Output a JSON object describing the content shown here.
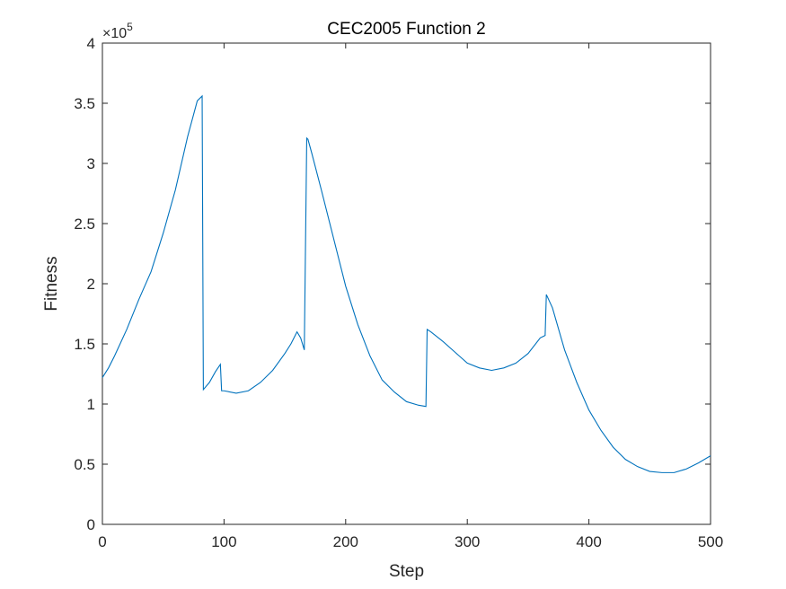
{
  "chart_data": {
    "type": "line",
    "title": "CEC2005 Function 2",
    "xlabel": "Step",
    "ylabel": "Fitness",
    "y_exponent_label": "×10",
    "y_exponent_power": "5",
    "xlim": [
      0,
      500
    ],
    "ylim": [
      0,
      4
    ],
    "y_multiplier": 100000,
    "grid": false,
    "legend": "none",
    "x_ticks": [
      0,
      100,
      200,
      300,
      400,
      500
    ],
    "x_tick_labels": [
      "0",
      "100",
      "200",
      "300",
      "400",
      "500"
    ],
    "y_ticks": [
      0,
      0.5,
      1,
      1.5,
      2,
      2.5,
      3,
      3.5,
      4
    ],
    "y_tick_labels": [
      "0",
      "0.5",
      "1",
      "1.5",
      "2",
      "2.5",
      "3",
      "3.5",
      "4"
    ],
    "line_color": "#0072BD",
    "series": [
      {
        "x": [
          0,
          5,
          10,
          20,
          30,
          40,
          50,
          60,
          70,
          78,
          82,
          83,
          88,
          93,
          97,
          98,
          100,
          110,
          120,
          130,
          140,
          150,
          155,
          160,
          163,
          166,
          168,
          169,
          172,
          180,
          190,
          200,
          210,
          220,
          230,
          240,
          250,
          260,
          266,
          267,
          270,
          280,
          290,
          300,
          310,
          320,
          330,
          340,
          350,
          360,
          364,
          365,
          370,
          380,
          390,
          400,
          410,
          420,
          430,
          440,
          450,
          460,
          470,
          480,
          490,
          500
        ],
        "y": [
          1.22,
          1.3,
          1.4,
          1.62,
          1.87,
          2.1,
          2.42,
          2.78,
          3.22,
          3.52,
          3.56,
          1.12,
          1.18,
          1.27,
          1.33,
          1.11,
          1.11,
          1.09,
          1.11,
          1.18,
          1.28,
          1.42,
          1.5,
          1.6,
          1.55,
          1.45,
          3.21,
          3.2,
          3.09,
          2.78,
          2.38,
          1.98,
          1.66,
          1.4,
          1.2,
          1.1,
          1.02,
          0.99,
          0.98,
          1.62,
          1.6,
          1.52,
          1.43,
          1.34,
          1.3,
          1.28,
          1.3,
          1.34,
          1.42,
          1.55,
          1.57,
          1.91,
          1.8,
          1.45,
          1.18,
          0.95,
          0.78,
          0.64,
          0.54,
          0.48,
          0.44,
          0.43,
          0.43,
          0.46,
          0.51,
          0.57
        ]
      }
    ]
  }
}
